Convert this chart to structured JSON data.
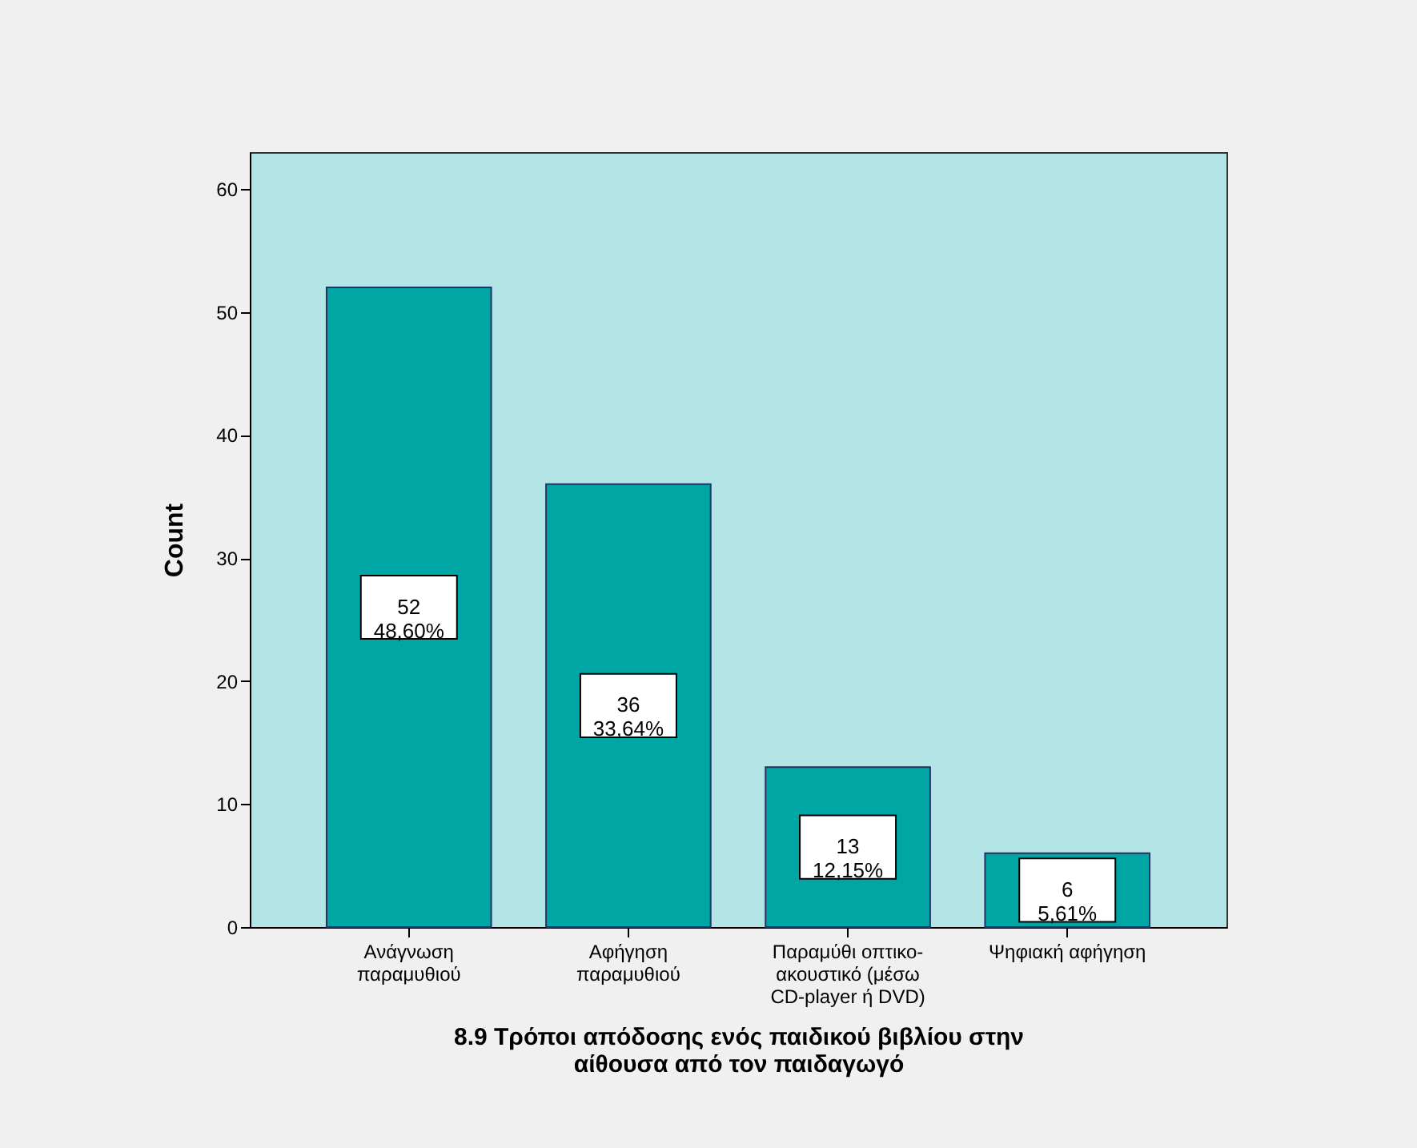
{
  "chart_data": {
    "type": "bar",
    "xlabel": "8.9 Τρόποι απόδοσης ενός παιδικού βιβλίου στην αίθουσα από τον παιδαγωγό",
    "ylabel": "Count",
    "categories": [
      "Ανάγνωση παραμυθιού",
      "Αφήγηση παραμυθιού",
      "Παραμύθι οπτικο-ακουστικό (μέσω CD-player ή DVD)",
      "Ψηφιακή αφήγηση"
    ],
    "values": [
      52,
      36,
      13,
      6
    ],
    "color": "#00a6a4",
    "value_labels": [
      "52\n48,60%",
      "36\n33,64%",
      "13\n12,15%",
      "6\n5,61%"
    ],
    "ylim": [
      0,
      63
    ],
    "yticks": [
      0,
      10,
      20,
      30,
      40,
      50,
      60
    ]
  }
}
